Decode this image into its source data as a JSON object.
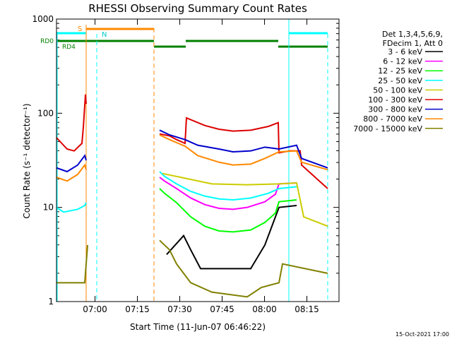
{
  "chart_data": {
    "type": "line",
    "title": "RHESSI Observing Summary Count Rates",
    "xlabel": "Start Time (11-Jun-07 06:46:22)",
    "ylabel": "Count Rate (s⁻¹ detector⁻¹)",
    "yscale": "log",
    "ylim": [
      1,
      1000
    ],
    "xlim_minutes_after_0646": [
      0,
      100
    ],
    "xticks": [
      "07:00",
      "07:15",
      "07:30",
      "07:45",
      "08:00",
      "08:15"
    ],
    "yticks": [
      "1",
      "10",
      "100",
      "1000"
    ],
    "legend_header": [
      "Det 1,3,4,5,6,9,",
      "FDecim 1, Att 0"
    ],
    "legend_placement": "right",
    "timestamp": "15-Oct-2021 17:00",
    "flags": {
      "saa_label": "S",
      "night_label": "N",
      "rd0_label": "RD0",
      "rd4_label": "RD4"
    },
    "series": [
      {
        "name": "3 - 6 keV",
        "color": "#000000"
      },
      {
        "name": "6 - 12 keV",
        "color": "#ff00ff"
      },
      {
        "name": "12 - 25 keV",
        "color": "#00ff00"
      },
      {
        "name": "25 - 50 keV",
        "color": "#00ffff"
      },
      {
        "name": "50 - 100 keV",
        "color": "#cccc00"
      },
      {
        "name": "100 - 300 keV",
        "color": "#dd0000"
      },
      {
        "name": "300 - 800 keV",
        "color": "#0000cc"
      },
      {
        "name": "800 - 7000 keV",
        "color": "#ff8800"
      },
      {
        "name": "7000 - 15000 keV",
        "color": "#808000"
      }
    ]
  }
}
